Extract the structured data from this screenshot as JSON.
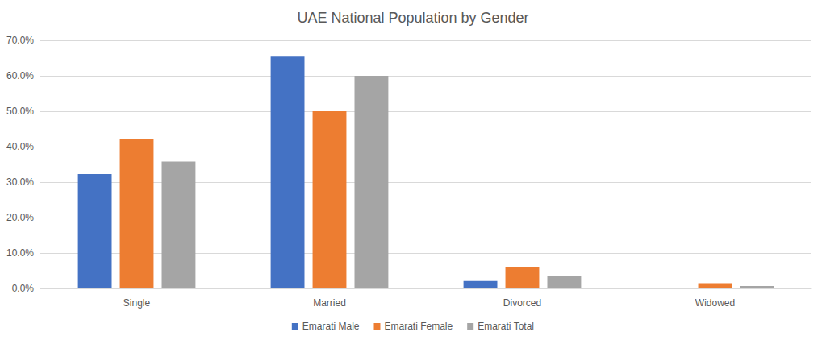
{
  "chart_data": {
    "type": "bar",
    "title": "UAE National Population by Gender",
    "categories": [
      "Single",
      "Married",
      "Divorced",
      "Widowed"
    ],
    "series": [
      {
        "name": "Emarati Male",
        "color": "#4472c4",
        "values": [
          32.3,
          65.4,
          2.1,
          0.1
        ]
      },
      {
        "name": "Emarati Female",
        "color": "#ed7d31",
        "values": [
          42.2,
          50.0,
          6.0,
          1.5
        ]
      },
      {
        "name": "Emarati Total",
        "color": "#a5a5a5",
        "values": [
          35.8,
          60.0,
          3.5,
          0.7
        ]
      }
    ],
    "ylim": [
      0,
      70
    ],
    "yticks": [
      {
        "value": 0,
        "label": "0.0%"
      },
      {
        "value": 10,
        "label": "10.0%"
      },
      {
        "value": 20,
        "label": "20.0%"
      },
      {
        "value": 30,
        "label": "30.0%"
      },
      {
        "value": 40,
        "label": "40.0%"
      },
      {
        "value": 50,
        "label": "50.0%"
      },
      {
        "value": 60,
        "label": "60.0%"
      },
      {
        "value": 70,
        "label": "70.0%"
      }
    ],
    "grid": true,
    "legend": "bottom"
  }
}
